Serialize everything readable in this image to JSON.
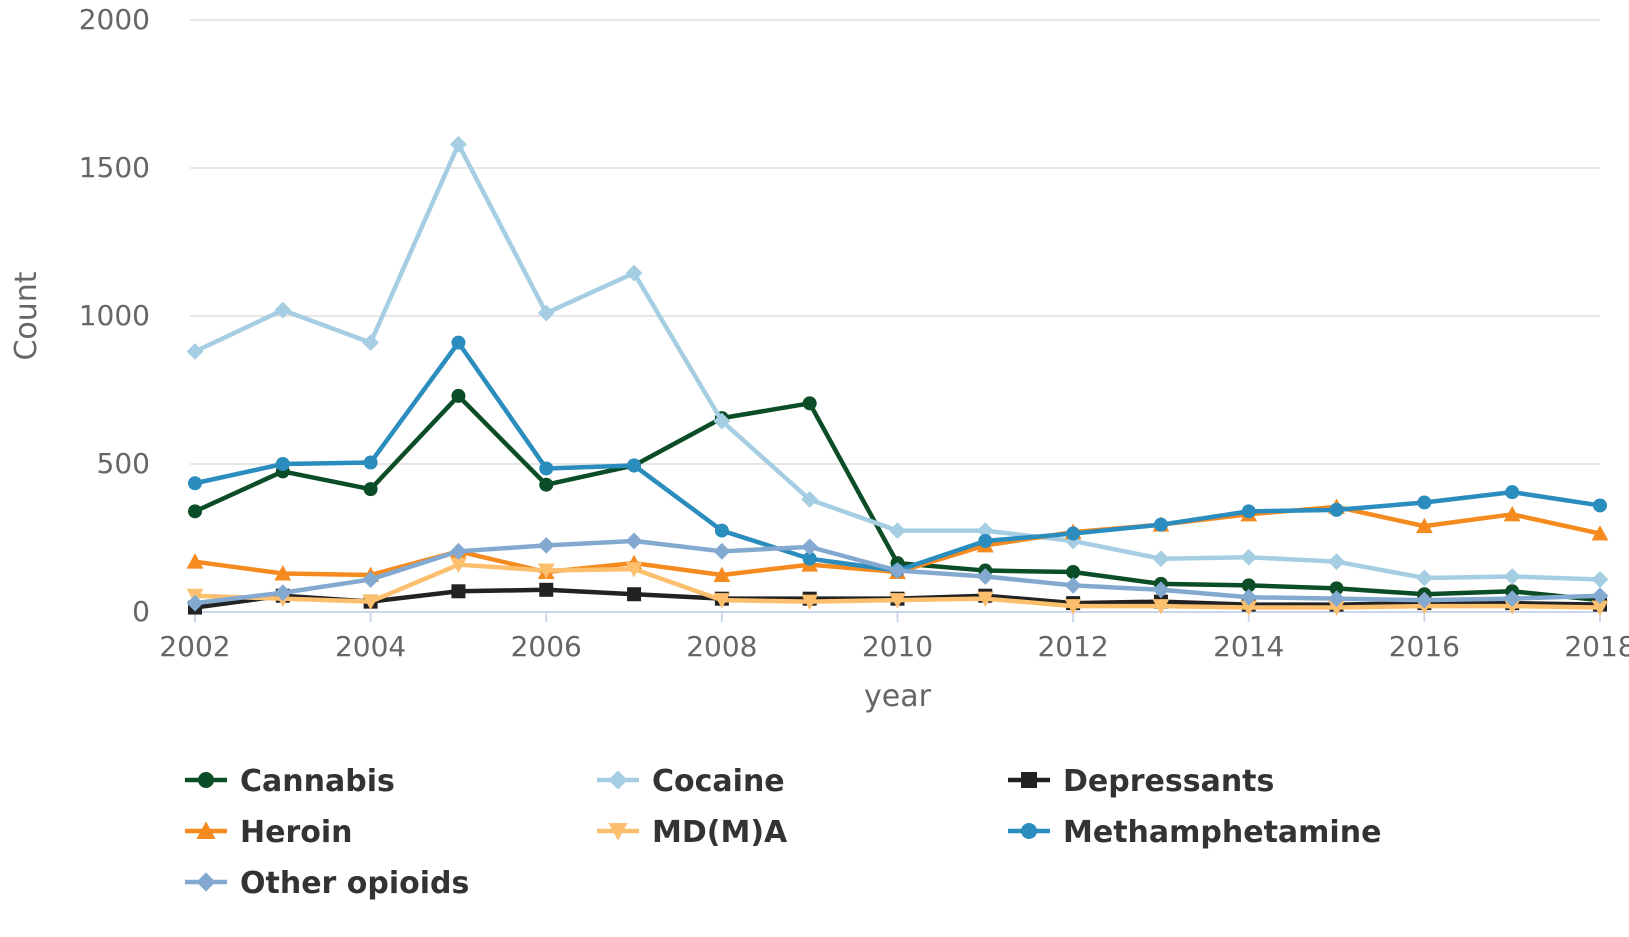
{
  "chart_data": {
    "type": "line",
    "title": "",
    "xlabel": "year",
    "ylabel": "Count",
    "xlim": [
      2002,
      2018
    ],
    "ylim": [
      0,
      2000
    ],
    "x_ticks": [
      "2002",
      "2004",
      "2006",
      "2008",
      "2010",
      "2012",
      "2014",
      "2016",
      "2018"
    ],
    "y_ticks": [
      "0",
      "500",
      "1000",
      "1500",
      "2000"
    ],
    "grid": true,
    "legend_position": "bottom",
    "x": [
      2002,
      2003,
      2004,
      2005,
      2006,
      2007,
      2008,
      2009,
      2010,
      2011,
      2012,
      2013,
      2014,
      2015,
      2016,
      2017,
      2018
    ],
    "series": [
      {
        "name": "Cannabis",
        "color": "#0b4d26",
        "marker": "circle",
        "values": [
          340,
          475,
          415,
          730,
          430,
          495,
          655,
          705,
          165,
          140,
          135,
          95,
          90,
          80,
          60,
          70,
          40
        ]
      },
      {
        "name": "Cocaine",
        "color": "#a6cee3",
        "marker": "diamond",
        "values": [
          880,
          1020,
          910,
          1580,
          1010,
          1145,
          645,
          380,
          275,
          275,
          240,
          180,
          185,
          170,
          115,
          120,
          110
        ]
      },
      {
        "name": "Depressants",
        "color": "#222222",
        "marker": "square",
        "values": [
          15,
          55,
          35,
          70,
          75,
          60,
          45,
          45,
          45,
          55,
          30,
          35,
          25,
          25,
          30,
          30,
          25
        ]
      },
      {
        "name": "Heroin",
        "color": "#f58a1f",
        "marker": "triangle",
        "values": [
          170,
          130,
          125,
          205,
          135,
          165,
          125,
          160,
          135,
          225,
          270,
          295,
          330,
          355,
          290,
          330,
          265
        ]
      },
      {
        "name": "MD(M)A",
        "color": "#fbbf6e",
        "marker": "triangle-down",
        "values": [
          55,
          45,
          35,
          160,
          140,
          145,
          40,
          35,
          40,
          45,
          20,
          20,
          15,
          15,
          20,
          20,
          15
        ]
      },
      {
        "name": "Methamphetamine",
        "color": "#2b8cbe",
        "marker": "circle",
        "values": [
          435,
          500,
          505,
          910,
          485,
          495,
          275,
          180,
          140,
          240,
          265,
          295,
          340,
          345,
          370,
          405,
          360
        ]
      },
      {
        "name": "Other opioids",
        "color": "#84a9d1",
        "marker": "diamond",
        "values": [
          30,
          65,
          110,
          205,
          225,
          240,
          205,
          220,
          140,
          120,
          90,
          75,
          50,
          45,
          40,
          45,
          55
        ]
      }
    ]
  }
}
